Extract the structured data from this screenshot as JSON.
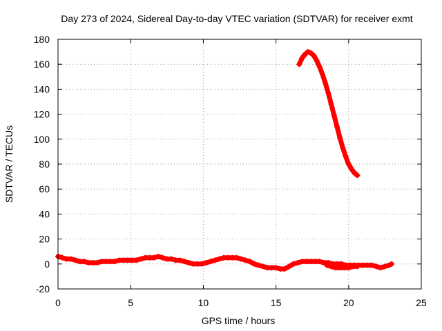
{
  "chart_data": {
    "type": "scatter",
    "title": "Day 273 of 2024, Sidereal Day-to-day VTEC variation (SDTVAR) for receiver exmt",
    "xlabel": "GPS time / hours",
    "ylabel": "SDTVAR / TECUs",
    "xlim": [
      0,
      25
    ],
    "ylim": [
      -20,
      180
    ],
    "xticks": [
      0,
      5,
      10,
      15,
      20,
      25
    ],
    "yticks": [
      -20,
      0,
      20,
      40,
      60,
      80,
      100,
      120,
      140,
      160,
      180
    ],
    "grid": true,
    "marker": "plus",
    "series": [
      {
        "name": "SDTVAR",
        "color": "#ff0000",
        "segments": [
          [
            [
              0.0,
              6
            ],
            [
              0.3,
              5
            ],
            [
              0.6,
              4
            ],
            [
              0.9,
              4
            ],
            [
              1.2,
              3
            ],
            [
              1.5,
              2
            ],
            [
              1.8,
              2
            ],
            [
              2.1,
              1
            ],
            [
              2.4,
              1
            ],
            [
              2.7,
              1
            ],
            [
              3.0,
              2
            ],
            [
              3.3,
              2
            ],
            [
              3.6,
              2
            ],
            [
              3.9,
              2
            ],
            [
              4.2,
              3
            ],
            [
              4.5,
              3
            ],
            [
              4.8,
              3
            ],
            [
              5.1,
              3
            ],
            [
              5.4,
              3
            ],
            [
              5.7,
              4
            ],
            [
              6.0,
              5
            ],
            [
              6.3,
              5
            ],
            [
              6.6,
              5
            ],
            [
              6.9,
              6
            ],
            [
              7.2,
              5
            ],
            [
              7.5,
              4
            ],
            [
              7.8,
              4
            ],
            [
              8.1,
              3
            ],
            [
              8.4,
              3
            ],
            [
              8.7,
              2
            ],
            [
              9.0,
              1
            ],
            [
              9.3,
              0
            ],
            [
              9.6,
              0
            ],
            [
              9.9,
              0
            ],
            [
              10.2,
              1
            ],
            [
              10.5,
              2
            ],
            [
              10.8,
              3
            ],
            [
              11.1,
              4
            ],
            [
              11.4,
              5
            ],
            [
              11.7,
              5
            ],
            [
              12.0,
              5
            ],
            [
              12.3,
              5
            ],
            [
              12.6,
              4
            ],
            [
              12.9,
              3
            ],
            [
              13.2,
              2
            ],
            [
              13.5,
              0
            ],
            [
              13.8,
              -1
            ],
            [
              14.1,
              -2
            ],
            [
              14.4,
              -3
            ],
            [
              14.7,
              -3
            ],
            [
              15.0,
              -3
            ],
            [
              15.3,
              -4
            ],
            [
              15.6,
              -4
            ],
            [
              15.9,
              -2
            ],
            [
              16.2,
              0
            ],
            [
              16.5,
              1
            ],
            [
              16.8,
              2
            ],
            [
              17.1,
              2
            ],
            [
              17.4,
              2
            ],
            [
              17.7,
              2
            ],
            [
              18.0,
              2
            ],
            [
              18.3,
              1
            ],
            [
              18.6,
              1
            ],
            [
              18.9,
              0
            ],
            [
              19.2,
              0
            ],
            [
              19.5,
              0
            ],
            [
              19.8,
              -1
            ],
            [
              20.1,
              -1
            ],
            [
              20.4,
              -1
            ],
            [
              20.7,
              -1
            ],
            [
              21.0,
              -1
            ],
            [
              21.3,
              -1
            ],
            [
              21.6,
              -1
            ],
            [
              21.9,
              -2
            ],
            [
              22.2,
              -3
            ],
            [
              22.5,
              -2
            ],
            [
              22.8,
              -1
            ],
            [
              22.95,
              0
            ]
          ],
          [
            [
              18.5,
              -1
            ],
            [
              18.8,
              -2
            ],
            [
              19.1,
              -3
            ],
            [
              19.4,
              -3
            ],
            [
              19.7,
              -3
            ],
            [
              20.0,
              -3
            ],
            [
              20.3,
              -2
            ],
            [
              20.6,
              -2
            ]
          ],
          [
            [
              16.6,
              160
            ],
            [
              16.8,
              165
            ],
            [
              17.0,
              168
            ],
            [
              17.2,
              170
            ],
            [
              17.4,
              169
            ],
            [
              17.6,
              167
            ],
            [
              17.8,
              163
            ],
            [
              18.0,
              158
            ],
            [
              18.2,
              152
            ],
            [
              18.4,
              145
            ],
            [
              18.6,
              137
            ],
            [
              18.8,
              128
            ],
            [
              19.0,
              119
            ],
            [
              19.2,
              110
            ],
            [
              19.4,
              101
            ],
            [
              19.6,
              93
            ],
            [
              19.8,
              86
            ],
            [
              20.0,
              80
            ],
            [
              20.2,
              76
            ],
            [
              20.4,
              73
            ],
            [
              20.6,
              71
            ]
          ]
        ]
      }
    ]
  }
}
